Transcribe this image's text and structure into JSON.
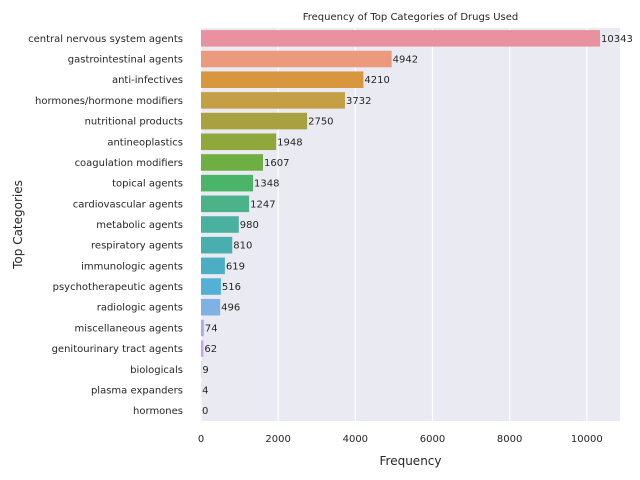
{
  "chart_data": {
    "type": "bar",
    "orientation": "horizontal",
    "title": "Frequency of Top Categories of Drugs Used",
    "xlabel": "Frequency",
    "ylabel": "Top Categories",
    "xlim": [
      0,
      10860
    ],
    "xticks": [
      0,
      2000,
      4000,
      6000,
      8000,
      10000
    ],
    "grid": true,
    "categories": [
      "central nervous system agents",
      "gastrointestinal agents",
      "anti-infectives",
      "hormones/hormone modifiers",
      "nutritional products",
      "antineoplastics",
      "coagulation modifiers",
      "topical agents",
      "cardiovascular agents",
      "metabolic agents",
      "respiratory agents",
      "immunologic agents",
      "psychotherapeutic agents",
      "radiologic agents",
      "miscellaneous agents",
      "genitourinary tract agents",
      "biologicals",
      "plasma expanders",
      "hormones"
    ],
    "values": [
      10343,
      4942,
      4210,
      3732,
      2750,
      1948,
      1607,
      1348,
      1247,
      980,
      810,
      619,
      516,
      496,
      74,
      62,
      9,
      4,
      0
    ],
    "colors": [
      "#ea919f",
      "#ec9a7d",
      "#d8963f",
      "#c49f45",
      "#a7a23f",
      "#8fa83c",
      "#6fae42",
      "#4ab468",
      "#4bb28a",
      "#4ab09f",
      "#49afae",
      "#4baec3",
      "#53b0d6",
      "#7fb1e4",
      "#a8acef",
      "#c6a2ef",
      "#dc96e6",
      "#e88fd2",
      "#ec90b5"
    ],
    "plot_background": "#eaeaf2",
    "grid_color": "#ffffff"
  }
}
